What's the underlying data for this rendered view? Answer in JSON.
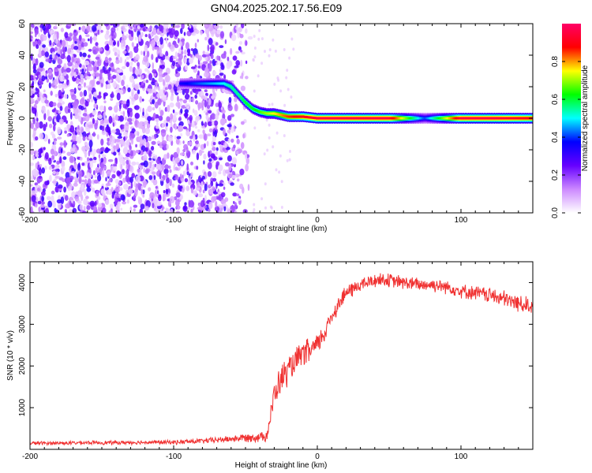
{
  "title": "GN04.2025.202.17.56.E09",
  "chart_data": [
    {
      "type": "heatmap",
      "xlabel": "Height of straight line (km)",
      "ylabel": "Frequency (Hz)",
      "xlim": [
        -200,
        150
      ],
      "ylim": [
        -60,
        60
      ],
      "x_ticks": [
        -200,
        -100,
        0,
        100
      ],
      "y_ticks": [
        -60,
        -40,
        -20,
        0,
        20,
        40,
        60
      ],
      "grid": false,
      "noise_region_x": [
        -200,
        -45
      ],
      "signal_track": {
        "x": [
          -95,
          -85,
          -75,
          -65,
          -60,
          -55,
          -50,
          -45,
          -40,
          -35,
          -30,
          -25,
          -20,
          -10,
          0,
          20,
          50,
          75,
          100,
          125,
          150
        ],
        "y": [
          22,
          22,
          22,
          22,
          20,
          15,
          10,
          6,
          4,
          3,
          3,
          2,
          1,
          1,
          0,
          0,
          0,
          0,
          0,
          0,
          0
        ],
        "amplitude": [
          0.35,
          0.4,
          0.45,
          0.5,
          0.55,
          0.55,
          0.6,
          0.6,
          0.65,
          0.7,
          0.75,
          0.8,
          0.85,
          0.9,
          0.95,
          0.95,
          0.95,
          0.4,
          0.95,
          0.95,
          0.9
        ]
      },
      "colorbar": {
        "label": "Normalized spectral amplitude",
        "range": [
          0,
          1
        ],
        "ticks": [
          "0.0",
          "0.2",
          "0.4",
          "0.6",
          "0.8"
        ],
        "colors": [
          "#ffffff",
          "#cc88ff",
          "#6600ff",
          "#0000ff",
          "#00ffff",
          "#00ff00",
          "#ffff00",
          "#ff0000",
          "#ff0066"
        ]
      }
    },
    {
      "type": "line",
      "xlabel": "Height of straight line (km)",
      "ylabel": "SNR (10 * v/v)",
      "xlim": [
        -200,
        150
      ],
      "ylim": [
        0,
        4500
      ],
      "x_ticks": [
        -200,
        -100,
        0,
        100
      ],
      "y_ticks": [
        1000,
        2000,
        3000,
        4000
      ],
      "grid": false,
      "color": "#f03030",
      "series": [
        {
          "x": [
            -200,
            -180,
            -160,
            -140,
            -120,
            -100,
            -80,
            -60,
            -50,
            -40,
            -35,
            -33,
            -30,
            -25,
            -20,
            -15,
            -10,
            -5,
            0,
            5,
            10,
            15,
            20,
            25,
            30,
            35,
            40,
            45,
            50,
            60,
            70,
            80,
            90,
            100,
            110,
            120,
            130,
            140,
            150
          ],
          "y": [
            150,
            150,
            160,
            160,
            170,
            170,
            200,
            250,
            280,
            300,
            350,
            700,
            1300,
            1700,
            1900,
            2100,
            2300,
            2350,
            2500,
            2800,
            3200,
            3500,
            3750,
            3850,
            3950,
            4000,
            4050,
            4080,
            4050,
            4000,
            3950,
            3950,
            3900,
            3800,
            3750,
            3700,
            3600,
            3500,
            3450
          ],
          "noise": [
            40,
            40,
            45,
            45,
            45,
            50,
            60,
            80,
            100,
            120,
            150,
            200,
            300,
            350,
            350,
            300,
            300,
            300,
            250,
            250,
            200,
            200,
            180,
            180,
            160,
            160,
            160,
            160,
            160,
            160,
            160,
            160,
            160,
            160,
            170,
            180,
            200,
            200,
            200
          ]
        }
      ]
    }
  ]
}
